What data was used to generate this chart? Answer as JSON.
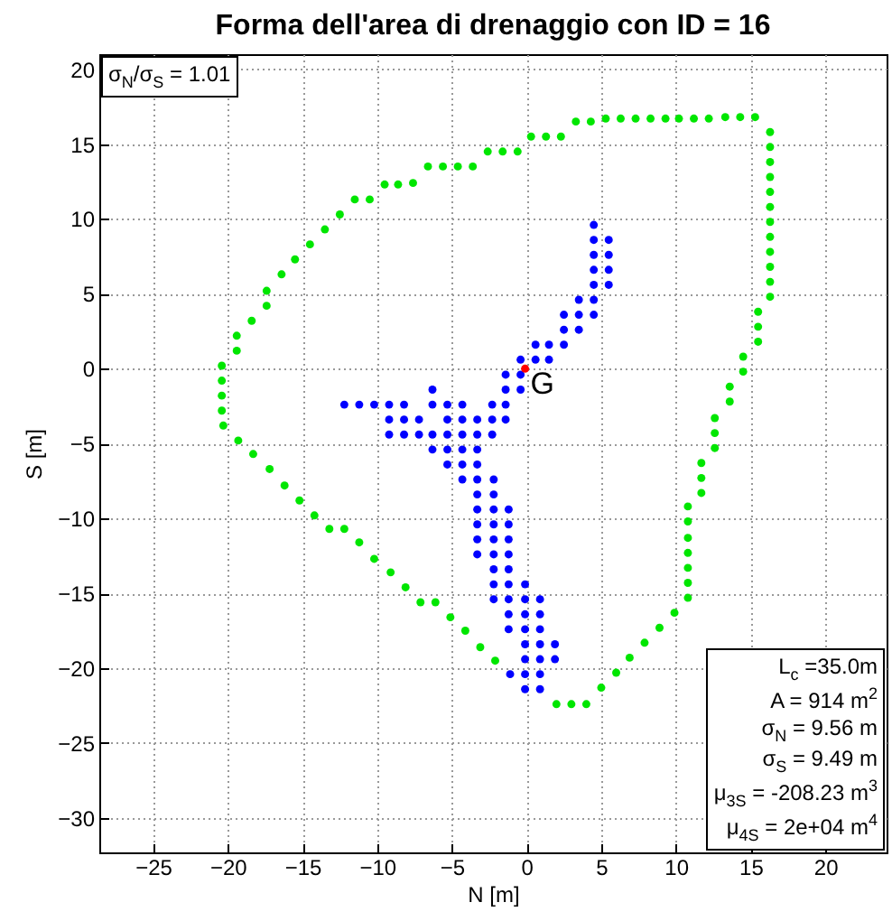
{
  "chart_data": {
    "type": "scatter",
    "title": "Forma dell'area di drenaggio con ID = 16",
    "xlabel": "N [m]",
    "ylabel": "S [m]",
    "xlim": [
      -28.6,
      24.1
    ],
    "ylim": [
      -32.3,
      21
    ],
    "xticks": [
      -25,
      -20,
      -15,
      -10,
      -5,
      0,
      5,
      10,
      15,
      20
    ],
    "yticks": [
      -30,
      -25,
      -20,
      -15,
      -10,
      -5,
      0,
      5,
      10,
      15,
      20
    ],
    "grid": true,
    "marker": "circle",
    "series": [
      {
        "color": "#00e600",
        "x": [
          3.3,
          4.3,
          5.3,
          6.3,
          7.3,
          8.3,
          9.3,
          10.2,
          11.2,
          12.2,
          13.3,
          14.3,
          15.3,
          0.3,
          1.3,
          2.3,
          -2.6,
          -1.6,
          -0.6,
          -6.6,
          -5.6,
          -4.6,
          -3.6,
          -9.5,
          -8.6,
          -7.6,
          -11.5,
          -10.5,
          -12.5,
          -13.5,
          -14.5,
          -15.5,
          -16.4,
          -17.4,
          -17.4,
          -18.4,
          -19.4,
          -19.4,
          -20.4,
          -20.4,
          -20.4,
          -20.4,
          -20.3,
          -19.3,
          -18.3,
          -17.2,
          -16.2,
          -15.2,
          -14.2,
          -13.2,
          -12.2,
          -11.2,
          -10.2,
          -9.1,
          -8.1,
          -7.1,
          -6.1,
          -5.1,
          -4.1,
          -3.1,
          -2.1,
          2.0,
          3.0,
          4.0,
          5.0,
          6.0,
          6.9,
          7.9,
          8.9,
          9.9,
          10.8,
          10.8,
          10.8,
          10.8,
          10.8,
          10.8,
          10.8,
          11.7,
          11.7,
          11.7,
          12.6,
          12.6,
          12.6,
          13.6,
          13.6,
          14.5,
          14.5,
          15.5,
          15.5,
          15.5,
          16.3,
          16.3,
          16.3,
          16.3,
          16.3,
          16.3,
          16.3,
          16.3,
          16.3,
          16.3,
          16.3,
          16.3
        ],
        "values": [
          16.5,
          16.5,
          16.7,
          16.7,
          16.7,
          16.7,
          16.7,
          16.7,
          16.7,
          16.7,
          16.8,
          16.8,
          16.8,
          15.5,
          15.5,
          15.5,
          14.5,
          14.5,
          14.5,
          13.5,
          13.5,
          13.5,
          13.5,
          12.3,
          12.3,
          12.4,
          11.3,
          11.3,
          10.3,
          9.3,
          8.3,
          7.3,
          6.3,
          5.2,
          4.2,
          3.2,
          2.2,
          1.2,
          0.2,
          -0.8,
          -1.8,
          -2.8,
          -3.8,
          -4.8,
          -5.7,
          -6.7,
          -7.8,
          -8.8,
          -9.8,
          -10.7,
          -10.7,
          -11.6,
          -12.7,
          -13.6,
          -14.6,
          -15.6,
          -15.6,
          -16.6,
          -17.5,
          -18.6,
          -19.5,
          -22.4,
          -22.4,
          -22.4,
          -21.3,
          -20.3,
          -19.3,
          -18.3,
          -17.3,
          -16.3,
          -15.3,
          -14.3,
          -13.3,
          -12.3,
          -11.3,
          -10.2,
          -9.2,
          -8.3,
          -7.3,
          -6.3,
          -5.3,
          -4.3,
          -3.3,
          -2.2,
          -1.2,
          -0.2,
          0.8,
          1.8,
          2.8,
          3.8,
          4.8,
          5.8,
          6.8,
          7.8,
          8.8,
          9.8,
          10.8,
          11.8,
          12.8,
          13.8,
          14.8,
          15.8
        ]
      },
      {
        "color": "#0000ff",
        "x": [
          4.5,
          4.5,
          5.5,
          4.5,
          5.5,
          4.5,
          5.5,
          4.5,
          5.5,
          3.5,
          4.5,
          2.5,
          3.5,
          4.5,
          2.5,
          3.5,
          0.6,
          1.5,
          2.5,
          -0.4,
          0.6,
          1.5,
          -1.4,
          -0.4,
          -6.3,
          -1.4,
          -0.4,
          -12.2,
          -11.2,
          -10.2,
          -9.2,
          -8.2,
          -6.3,
          -5.3,
          -4.3,
          -2.3,
          -1.4,
          -9.2,
          -8.2,
          -7.2,
          -5.3,
          -4.3,
          -3.3,
          -2.3,
          -1.4,
          -9.2,
          -8.2,
          -7.2,
          -6.3,
          -5.3,
          -4.3,
          -3.3,
          -2.3,
          -6.3,
          -5.3,
          -4.3,
          -3.3,
          -5.3,
          -4.3,
          -3.3,
          -4.3,
          -3.3,
          -2.2,
          -3.3,
          -2.2,
          -3.3,
          -2.2,
          -1.2,
          -3.3,
          -2.2,
          -1.2,
          -3.3,
          -2.2,
          -1.2,
          -3.3,
          -2.2,
          -1.2,
          -2.2,
          -1.2,
          -2.2,
          -1.2,
          -0.1,
          -2.2,
          -1.2,
          -0.1,
          0.9,
          -1.2,
          -0.1,
          0.9,
          -1.2,
          -0.1,
          0.9,
          -0.1,
          0.9,
          1.9,
          -0.1,
          0.9,
          1.9,
          -1.1,
          -0.1,
          0.9,
          -0.1,
          0.9
        ],
        "values": [
          9.6,
          8.6,
          8.6,
          7.6,
          7.6,
          6.6,
          6.6,
          5.6,
          5.6,
          4.6,
          4.6,
          3.6,
          3.6,
          3.6,
          2.6,
          2.6,
          1.6,
          1.6,
          1.6,
          0.6,
          0.6,
          0.6,
          -0.4,
          -0.4,
          -1.4,
          -1.4,
          -1.4,
          -2.4,
          -2.4,
          -2.4,
          -2.4,
          -2.4,
          -2.4,
          -2.4,
          -2.4,
          -2.4,
          -2.4,
          -3.4,
          -3.4,
          -3.4,
          -3.4,
          -3.4,
          -3.4,
          -3.4,
          -3.4,
          -4.4,
          -4.4,
          -4.4,
          -4.4,
          -4.4,
          -4.4,
          -4.4,
          -4.4,
          -5.4,
          -5.4,
          -5.4,
          -5.4,
          -6.4,
          -6.4,
          -6.4,
          -7.4,
          -7.4,
          -7.4,
          -8.4,
          -8.4,
          -9.4,
          -9.4,
          -9.4,
          -10.4,
          -10.4,
          -10.4,
          -11.4,
          -11.4,
          -11.4,
          -12.4,
          -12.4,
          -12.4,
          -13.4,
          -13.4,
          -14.4,
          -14.4,
          -14.4,
          -15.4,
          -15.4,
          -15.4,
          -15.4,
          -16.4,
          -16.4,
          -16.4,
          -17.4,
          -17.4,
          -17.4,
          -18.4,
          -18.4,
          -18.4,
          -19.4,
          -19.4,
          -19.4,
          -20.4,
          -20.4,
          -20.4,
          -21.4,
          -21.4
        ]
      },
      {
        "color": "#ff0000",
        "x": [
          -0.1
        ],
        "values": [
          0.0
        ]
      }
    ],
    "annotations": [
      {
        "text": "G",
        "x": -0.1,
        "y": 0.0
      },
      "σ$_{N}$/σ$_{S}$ = 1.01",
      "L$_{c}$ =35.0m",
      "A = 914 m$^{2}$",
      "σ$_{N}$ = 9.56 m",
      "σ$_{S}$ = 9.49 m",
      "μ$_{3S}$ = -208.23 m$^{3}$",
      "μ$_{4S}$ = 2e+04 m$^{4}$"
    ]
  }
}
